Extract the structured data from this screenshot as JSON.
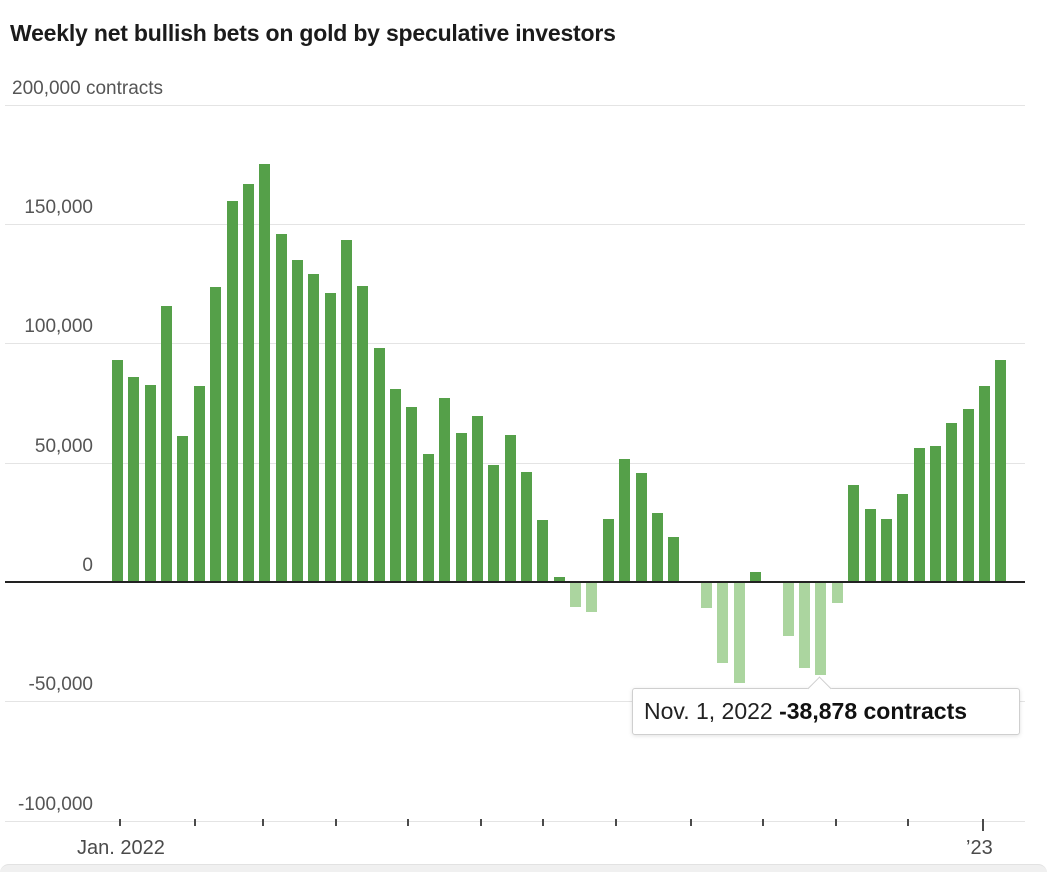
{
  "title": "Weekly net bullish bets on gold by speculative investors",
  "y_axis": {
    "ticks": [
      {
        "label": "200,000 contracts",
        "value": 200000,
        "align": "left"
      },
      {
        "label": "150,000",
        "value": 150000,
        "align": "right"
      },
      {
        "label": "100,000",
        "value": 100000,
        "align": "right"
      },
      {
        "label": "50,000",
        "value": 50000,
        "align": "right"
      },
      {
        "label": "0",
        "value": 0,
        "align": "right"
      },
      {
        "label": "-50,000",
        "value": -50000,
        "align": "right"
      },
      {
        "label": "-100,000",
        "value": -100000,
        "align": "right"
      }
    ]
  },
  "x_axis": {
    "start_label": "Jan. 2022",
    "end_label": "’23",
    "month_tick_count": 13
  },
  "tooltip": {
    "date": "Nov. 1, 2022",
    "value": "-38,878 contracts"
  },
  "colors": {
    "positive_bar": "#55a049",
    "negative_bar": "#abd59f",
    "zero_line": "#222222",
    "gridline": "#e4e4e4",
    "axis_text": "#555555",
    "title_text": "#1b1b1b"
  },
  "chart_data": {
    "type": "bar",
    "title": "Weekly net bullish bets on gold by speculative investors",
    "xlabel": "",
    "ylabel": "contracts",
    "ylim": [
      -100000,
      200000
    ],
    "x_range": [
      "Jan. 2022",
      "'23"
    ],
    "frequency": "weekly",
    "grid": true,
    "values": [
      93000,
      86000,
      82500,
      115500,
      61000,
      82000,
      123500,
      159500,
      167000,
      175000,
      146000,
      135000,
      129000,
      121000,
      143500,
      124000,
      98000,
      81000,
      73500,
      53500,
      77000,
      62500,
      69500,
      49000,
      61500,
      46000,
      26000,
      2000,
      -10500,
      -12500,
      26500,
      51500,
      45500,
      29000,
      19000,
      0,
      -11000,
      -34000,
      -42500,
      4000,
      0,
      -22500,
      -36000,
      -38878,
      -9000,
      40500,
      30500,
      26500,
      37000,
      56000,
      57000,
      66500,
      72500,
      82000,
      93000
    ],
    "highlight": {
      "index": 43,
      "date": "Nov. 1, 2022",
      "value": -38878
    }
  }
}
